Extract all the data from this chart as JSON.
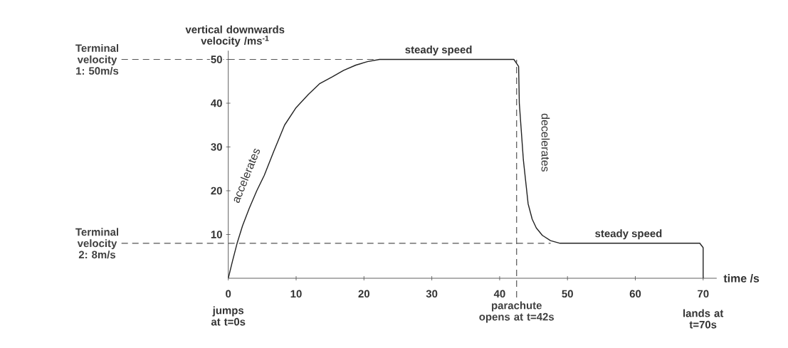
{
  "chart_data": {
    "type": "line",
    "ylabel": "vertical downwards velocity /ms$^{-1}$",
    "xlabel": "time /s",
    "x": [
      0,
      0.6,
      1.3,
      2.1,
      3.1,
      4.2,
      5.3,
      6.7,
      8.3,
      10,
      11.8,
      13.5,
      15.3,
      17,
      18.8,
      20.5,
      22.3,
      42.1,
      42.8,
      42.9,
      43.5,
      44.2,
      44.8,
      45.4,
      46.3,
      47.5,
      48.9,
      69.5,
      70,
      70
    ],
    "series": [
      {
        "color": "#222222",
        "line_style": "solid",
        "values": [
          0,
          3.8,
          8,
          12,
          16,
          20,
          23.5,
          29,
          35,
          39,
          42,
          44.5,
          46,
          47.5,
          48.7,
          49.5,
          50,
          50,
          48.4,
          40,
          27,
          17,
          13.5,
          11.5,
          9.8,
          8.6,
          8,
          8,
          7,
          0
        ]
      }
    ],
    "xlim": [
      0,
      72
    ],
    "ylim": [
      0,
      52
    ],
    "xticks": [
      0,
      10,
      20,
      30,
      40,
      50,
      60,
      70
    ],
    "yticks": [
      10,
      20,
      30,
      40,
      50
    ],
    "ref_lines": [
      {
        "axis": "y",
        "value": 50,
        "label": "Terminal velocity 1: 50m/s",
        "color": "#555555",
        "line_style": "dashed"
      },
      {
        "axis": "y",
        "value": 8,
        "label": "Terminal velocity 2: 8m/s",
        "color": "#555555",
        "line_style": "dashed"
      },
      {
        "axis": "x",
        "value": 42.5,
        "label": "parachute opens at t=42s",
        "color": "#555555",
        "line_style": "dashed"
      }
    ],
    "annotations": [
      {
        "text": "steady speed",
        "x": 31,
        "y": 50
      },
      "accelerates",
      "decelerates",
      {
        "text": "steady speed",
        "x": 59,
        "y": 8
      },
      "jumps at t=0s",
      "lands at t=70s"
    ]
  }
}
